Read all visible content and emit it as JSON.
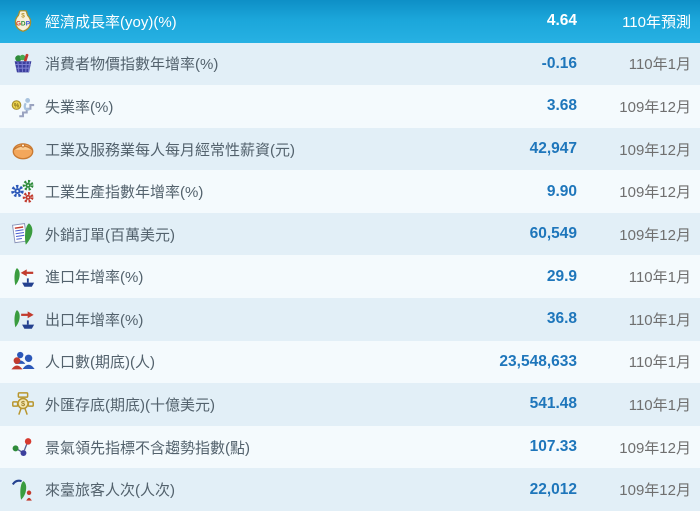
{
  "colors": {
    "selected_bg_top": "#0e8fc6",
    "selected_bg_bottom": "#27b1e3",
    "row_even_bg": "#e2eff7",
    "row_odd_bg": "#f4fafd",
    "label_color": "#53626d",
    "value_color": "#1e76bb",
    "period_color": "#6f6f6f",
    "selected_text_color": "#ffffff"
  },
  "rows": [
    {
      "icon": "gdp-icon",
      "label": "經濟成長率(yoy)(%)",
      "value": "4.64",
      "period": "110年預測",
      "selected": true
    },
    {
      "icon": "cpi-basket-icon",
      "label": "消費者物價指數年增率(%)",
      "value": "-0.16",
      "period": "110年1月",
      "selected": false
    },
    {
      "icon": "unemployment-icon",
      "label": "失業率(%)",
      "value": "3.68",
      "period": "109年12月",
      "selected": false
    },
    {
      "icon": "salary-purse-icon",
      "label": "工業及服務業每人每月經常性薪資(元)",
      "value": "42,947",
      "period": "109年12月",
      "selected": false
    },
    {
      "icon": "industry-gears-icon",
      "label": "工業生產指數年增率(%)",
      "value": "9.90",
      "period": "109年12月",
      "selected": false
    },
    {
      "icon": "export-orders-icon",
      "label": "外銷訂單(百萬美元)",
      "value": "60,549",
      "period": "109年12月",
      "selected": false
    },
    {
      "icon": "import-icon",
      "label": "進口年增率(%)",
      "value": "29.9",
      "period": "110年1月",
      "selected": false
    },
    {
      "icon": "export-icon",
      "label": "出口年增率(%)",
      "value": "36.8",
      "period": "110年1月",
      "selected": false
    },
    {
      "icon": "population-icon",
      "label": "人口數(期底)(人)",
      "value": "23,548,633",
      "period": "110年1月",
      "selected": false
    },
    {
      "icon": "forex-reserves-icon",
      "label": "外匯存底(期底)(十億美元)",
      "value": "541.48",
      "period": "110年1月",
      "selected": false
    },
    {
      "icon": "leading-indicator-icon",
      "label": "景氣領先指標不含趨勢指數(點)",
      "value": "107.33",
      "period": "109年12月",
      "selected": false
    },
    {
      "icon": "taiwan-visitors-icon",
      "label": "來臺旅客人次(人次)",
      "value": "22,012",
      "period": "109年12月",
      "selected": false
    }
  ]
}
